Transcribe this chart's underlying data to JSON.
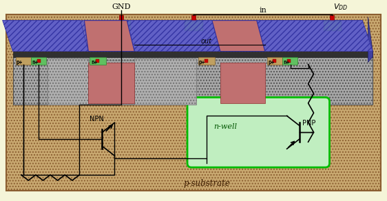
{
  "bg_color": "#f5f5d8",
  "substrate_face": "#c8a870",
  "substrate_edge": "#8B5E30",
  "substrate_hatch": "....",
  "chip_body_fc": "#909090",
  "chip_body_ec": "#505050",
  "poly_fc": "#6060c8",
  "poly_ec": "#3030a0",
  "poly_hatch": "////",
  "dark_gray": "#404040",
  "nwell_fc": "#c0eec0",
  "nwell_ec": "#00bb00",
  "pplus_fc": "#c0a060",
  "pplus_ec": "#806030",
  "nplus_fc": "#60c060",
  "nplus_ec": "#308030",
  "gate_oxide_fc": "#c07070",
  "gate_oxide_ec": "#803030",
  "contact_fc": "#cc0000",
  "contact_ec": "#800000",
  "metal_pad_fc": "#60bb60",
  "metal_pad_ec": "#208020",
  "wire_color": "#000000",
  "label_gnd": "GND",
  "label_in": "in",
  "label_vdd": "$V_{DD}$",
  "label_out": "out",
  "label_nwell": "n-well",
  "label_psubstrate": "p-substrate",
  "label_npn": "NPN",
  "label_pnp": "PNP",
  "label_p1": "p+",
  "label_n1": "n+",
  "label_n2": "n+",
  "label_p2": "p+",
  "label_p3": "p+",
  "label_n3": "n+"
}
